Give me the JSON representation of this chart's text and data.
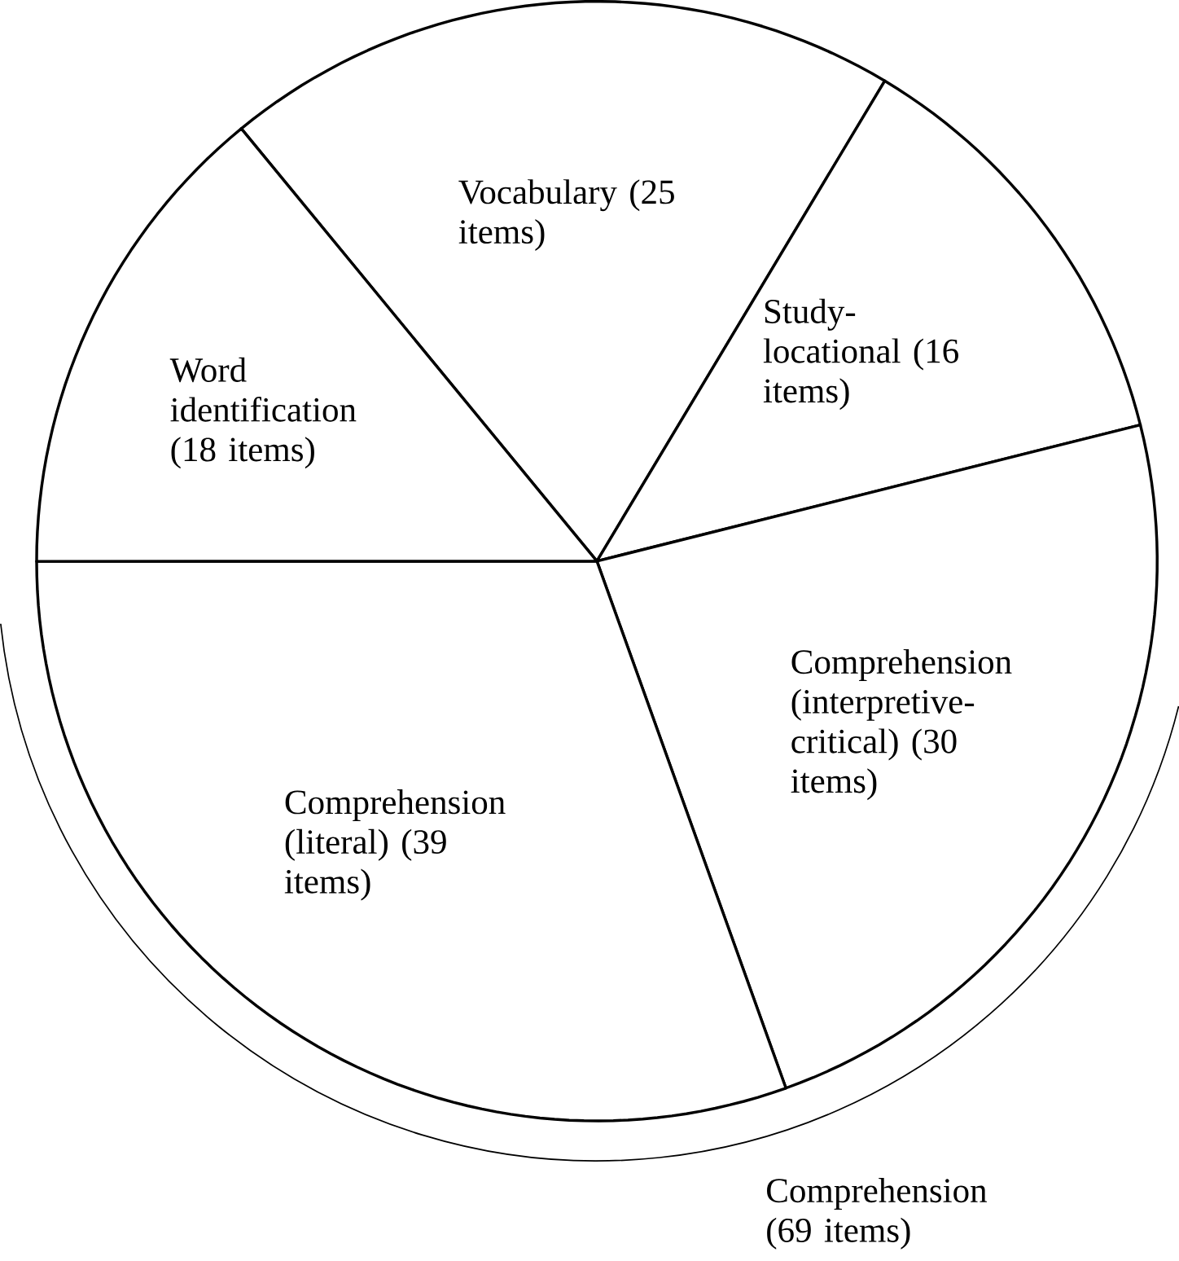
{
  "chart_data": {
    "type": "pie",
    "categories": [
      "Vocabulary (25 items)",
      "Study-locational (16 items)",
      "Comprehension (interpretive-critical) (30 items)",
      "Comprehension (literal) (39 items)",
      "Word identification (18 items)"
    ],
    "values": [
      25,
      16,
      30,
      39,
      18
    ],
    "colors": [
      "#ffffff",
      "#ffffff",
      "#ffffff",
      "#ffffff",
      "#ffffff"
    ],
    "annotations": [
      "Comprehension (69 items)"
    ]
  }
}
